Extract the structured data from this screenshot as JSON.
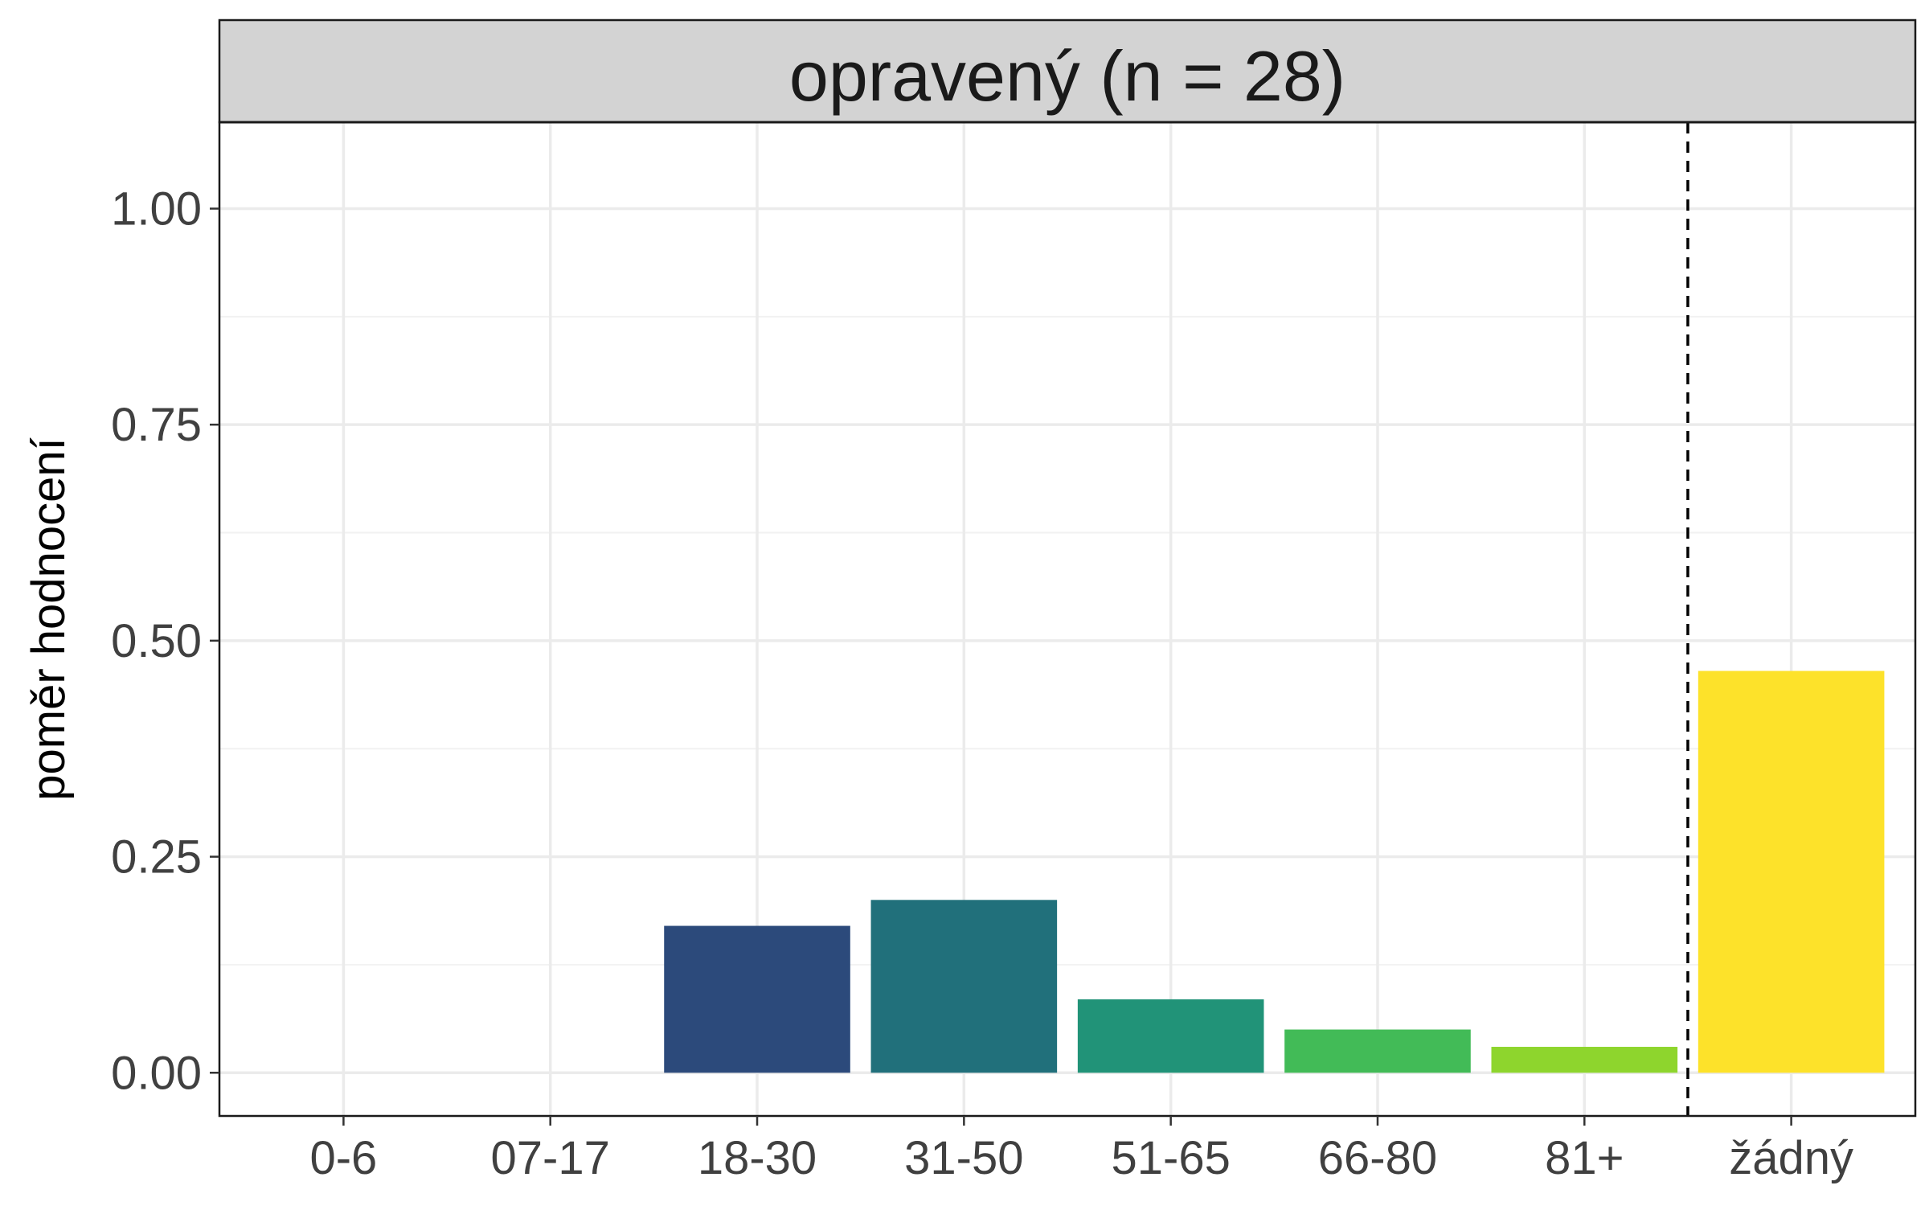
{
  "chart_data": {
    "type": "bar",
    "title": "opravený (n = 28)",
    "xlabel": "",
    "ylabel": "poměr hodnocení",
    "ylim": [
      -0.05,
      1.1
    ],
    "yticks": [
      "0.00",
      "0.25",
      "0.50",
      "0.75",
      "1.00"
    ],
    "ytick_values": [
      0,
      0.25,
      0.5,
      0.75,
      1.0
    ],
    "categories": [
      "0-6",
      "07-17",
      "18-30",
      "31-50",
      "51-65",
      "66-80",
      "81+",
      "žádný"
    ],
    "values": [
      0,
      0,
      0.17,
      0.2,
      0.085,
      0.05,
      0.03,
      0.465
    ],
    "colors": [
      "#440154",
      "#46327E",
      "#2C4A7B",
      "#21707B",
      "#219378",
      "#42BB57",
      "#8ED52D",
      "#FDE22A"
    ],
    "reference_line": {
      "type": "vertical",
      "style": "dashed",
      "between": [
        "81+",
        "žádný"
      ]
    },
    "grid": true,
    "legend": "none"
  }
}
